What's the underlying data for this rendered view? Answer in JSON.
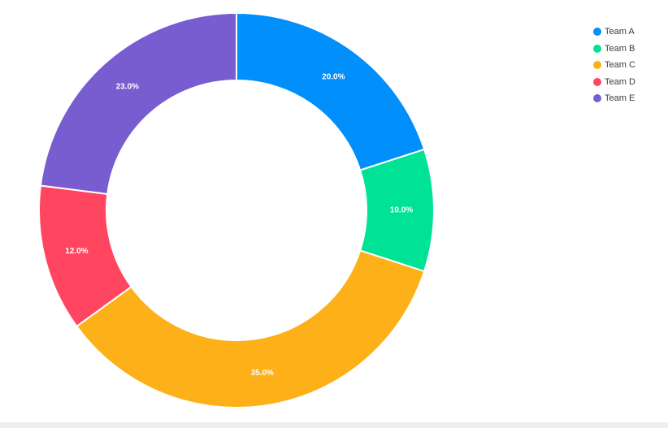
{
  "chart_data": {
    "type": "pie",
    "variant": "donut",
    "categories": [
      "Team A",
      "Team B",
      "Team C",
      "Team D",
      "Team E"
    ],
    "values": [
      20.0,
      10.0,
      35.0,
      12.0,
      23.0
    ],
    "value_labels": [
      "20.0%",
      "10.0%",
      "35.0%",
      "12.0%",
      "23.0%"
    ],
    "colors": [
      "#008FFB",
      "#00E396",
      "#FEB019",
      "#FF4560",
      "#775DD0"
    ],
    "title": "",
    "legend_position": "top-right"
  }
}
